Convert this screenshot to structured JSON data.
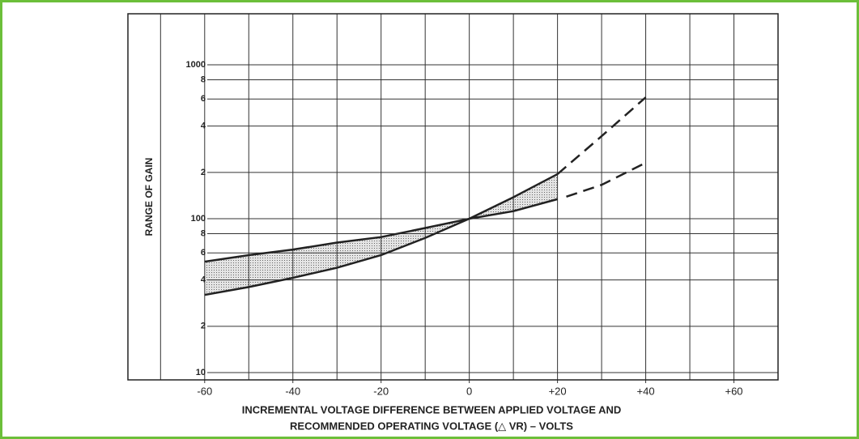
{
  "chart_data": {
    "type": "line",
    "y_label": "RANGE OF GAIN",
    "x_label": [
      "INCREMENTAL VOLTAGE DIFFERENCE BETWEEN APPLIED VOLTAGE AND",
      "RECOMMENDED OPERATING VOLTAGE (△ VR) – VOLTS"
    ],
    "xlim": [
      -77.4,
      70
    ],
    "ylim": [
      8.97,
      2147
    ],
    "y_log": true,
    "grid": true,
    "xticks": [
      -60,
      -40,
      -20,
      0,
      {
        "value": 20,
        "label": "+20"
      },
      {
        "value": 40,
        "label": "+40"
      },
      {
        "value": 60,
        "label": "+60"
      }
    ],
    "x_grid": [
      -70,
      -60,
      -50,
      -40,
      -30,
      -20,
      -10,
      0,
      10,
      20,
      30,
      40,
      50,
      60
    ],
    "yticks": [
      10,
      {
        "value": 20,
        "label": "2"
      },
      {
        "value": 40,
        "label": "4"
      },
      {
        "value": 60,
        "label": "6"
      },
      {
        "value": 80,
        "label": "8"
      },
      100,
      {
        "value": 200,
        "label": "2"
      },
      {
        "value": 400,
        "label": "4"
      },
      {
        "value": 600,
        "label": "6"
      },
      {
        "value": 800,
        "label": "8"
      },
      1000
    ],
    "fill_between": [
      0,
      1
    ],
    "series": [
      {
        "color": "#222222",
        "style": "solid",
        "x": [
          -60,
          -50,
          -40,
          -30,
          -20,
          -10,
          0,
          10,
          20
        ],
        "values": [
          52.6,
          58,
          63,
          70,
          76,
          87,
          100,
          138,
          195
        ]
      },
      {
        "color": "#222222",
        "style": "solid",
        "x": [
          -60,
          -50,
          -40,
          -30,
          -20,
          -10,
          0,
          10,
          20
        ],
        "values": [
          32,
          36,
          41.3,
          48,
          58,
          75,
          100,
          112,
          134
        ]
      },
      {
        "color": "#222222",
        "style": "dashed",
        "x": [
          20,
          30,
          40
        ],
        "values": [
          195,
          344,
          615
        ]
      },
      {
        "color": "#222222",
        "style": "dashed",
        "x": [
          22,
          30,
          40
        ],
        "values": [
          139,
          166,
          231
        ]
      }
    ]
  }
}
